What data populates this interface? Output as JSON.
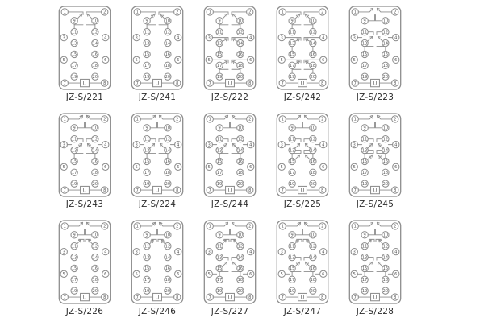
{
  "page": {
    "background": "#ffffff"
  },
  "colors": {
    "outline": "#8d8d8d",
    "number": "#555555",
    "label": "#2b2b2b"
  },
  "diagram": {
    "terminal_numbers": [
      "1",
      "2",
      "9",
      "10",
      "11",
      "12",
      "3",
      "4",
      "13",
      "14",
      "15",
      "16",
      "5",
      "6",
      "17",
      "18",
      "19",
      "20",
      "7",
      "8"
    ],
    "u_label": "U"
  },
  "models": [
    {
      "label": "JZ-S/221",
      "contacts": [
        "inner9"
      ],
      "style": "a"
    },
    {
      "label": "JZ-S/241",
      "contacts": [
        "inner9"
      ],
      "style": "b"
    },
    {
      "label": "JZ-S/222",
      "contacts": [
        "inner9",
        "inner13",
        "inner17"
      ],
      "style": "a"
    },
    {
      "label": "JZ-S/242",
      "contacts": [
        "inner9",
        "inner13",
        "inner17"
      ],
      "style": "b"
    },
    {
      "label": "JZ-S/223",
      "contacts": [
        "top",
        "mid"
      ],
      "style": "a"
    },
    {
      "label": "JZ-S/243",
      "contacts": [
        "top",
        "mid"
      ],
      "style": "b"
    },
    {
      "label": "JZ-S/224",
      "contacts": [
        "top",
        "mid"
      ],
      "style": "a"
    },
    {
      "label": "JZ-S/244",
      "contacts": [
        "top",
        "mid"
      ],
      "style": "b"
    },
    {
      "label": "JZ-S/225",
      "contacts": [
        "top",
        "mid",
        "mid15"
      ],
      "style": "a"
    },
    {
      "label": "JZ-S/245",
      "contacts": [
        "top",
        "mid",
        "mid15"
      ],
      "style": "b"
    },
    {
      "label": "JZ-S/226",
      "contacts": [
        "top",
        "p11"
      ],
      "style": "a"
    },
    {
      "label": "JZ-S/246",
      "contacts": [
        "top",
        "p11"
      ],
      "style": "b"
    },
    {
      "label": "JZ-S/227",
      "contacts": [
        "top",
        "p11",
        "low15"
      ],
      "style": "a"
    },
    {
      "label": "JZ-S/247",
      "contacts": [
        "top",
        "p11",
        "low15"
      ],
      "style": "b"
    },
    {
      "label": "JZ-S/228",
      "contacts": [
        "top",
        "p11",
        "low15"
      ],
      "style": "a"
    }
  ]
}
